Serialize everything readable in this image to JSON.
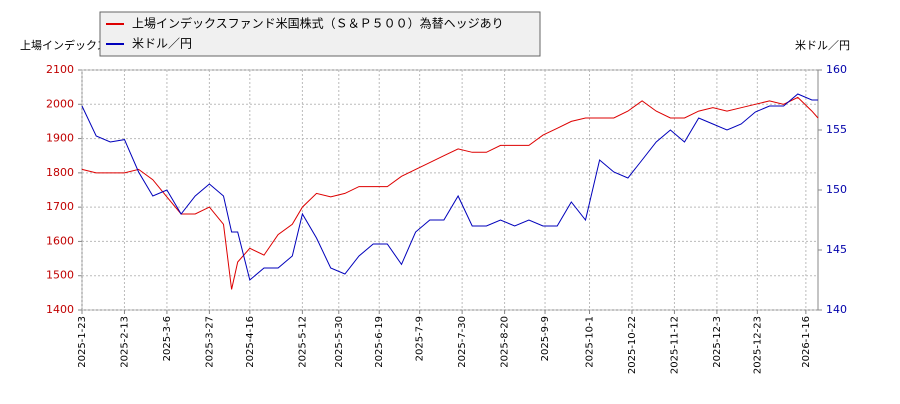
{
  "chart_data": {
    "type": "line",
    "ylabel": "上場インデックス",
    "y2label": "米ドル／円",
    "x": [
      "2025-1-23",
      "2025-1-30",
      "2025-2-6",
      "2025-2-13",
      "2025-2-20",
      "2025-2-27",
      "2025-3-6",
      "2025-3-13",
      "2025-3-20",
      "2025-3-27",
      "2025-4-3",
      "2025-4-7",
      "2025-4-10",
      "2025-4-16",
      "2025-4-23",
      "2025-4-30",
      "2025-5-7",
      "2025-5-12",
      "2025-5-19",
      "2025-5-26",
      "2025-6-2",
      "2025-6-9",
      "2025-6-16",
      "2025-6-23",
      "2025-6-30",
      "2025-7-7",
      "2025-7-14",
      "2025-7-21",
      "2025-7-28",
      "2025-8-4",
      "2025-8-11",
      "2025-8-18",
      "2025-8-25",
      "2025-9-1",
      "2025-9-8",
      "2025-9-15",
      "2025-9-22",
      "2025-9-29",
      "2025-10-6",
      "2025-10-13",
      "2025-10-20",
      "2025-10-27",
      "2025-11-3",
      "2025-11-10",
      "2025-11-17",
      "2025-11-24",
      "2025-12-1",
      "2025-12-8",
      "2025-12-15",
      "2025-12-22",
      "2025-12-29",
      "2026-1-5",
      "2026-1-12",
      "2026-1-19",
      "2026-1-22"
    ],
    "series": [
      {
        "name": "上場インデックスファンド米国株式（Ｓ＆Ｐ５００）為替ヘッジあり",
        "color": "#dd0000",
        "values": [
          1810,
          1800,
          1800,
          1800,
          1810,
          1780,
          1730,
          1680,
          1680,
          1700,
          1650,
          1460,
          1540,
          1580,
          1560,
          1620,
          1650,
          1700,
          1740,
          1730,
          1740,
          1760,
          1760,
          1760,
          1790,
          1810,
          1830,
          1850,
          1870,
          1860,
          1860,
          1880,
          1880,
          1880,
          1910,
          1930,
          1950,
          1960,
          1960,
          1960,
          1980,
          2010,
          1980,
          1960,
          1960,
          1980,
          1990,
          1980,
          1990,
          2000,
          2010,
          2000,
          2020,
          1980,
          1960
        ]
      },
      {
        "name": "米ドル／円",
        "color": "#0000bb",
        "axis": "y2",
        "values": [
          157,
          154.5,
          154,
          154.2,
          151.5,
          149.5,
          150,
          148,
          149.5,
          150.5,
          149.5,
          146.5,
          146.5,
          142.5,
          143.5,
          143.5,
          144.5,
          148,
          146,
          143.5,
          143,
          144.5,
          145.5,
          145.5,
          143.8,
          146.5,
          147.5,
          147.5,
          149.5,
          147,
          147,
          147.5,
          147,
          147.5,
          147,
          147,
          149,
          147.5,
          152.5,
          151.5,
          151,
          152.5,
          154,
          155,
          154,
          156,
          155.5,
          155,
          155.5,
          156.5,
          157,
          157,
          158,
          157.5,
          157.5
        ]
      }
    ],
    "xlim": [
      "2025-1-23",
      "2026-1-22"
    ],
    "xticks": [
      "2025-1-23",
      "2025-2-13",
      "2025-3-6",
      "2025-3-27",
      "2025-4-16",
      "2025-5-12",
      "2025-5-30",
      "2025-6-19",
      "2025-7-9",
      "2025-7-30",
      "2025-8-20",
      "2025-9-9",
      "2025-10-1",
      "2025-10-22",
      "2025-11-12",
      "2025-12-3",
      "2025-12-23",
      "2026-1-16"
    ],
    "ylim": [
      1400,
      2100
    ],
    "yticks": [
      1400,
      1500,
      1600,
      1700,
      1800,
      1900,
      2000,
      2100
    ],
    "y2lim": [
      140,
      160
    ],
    "y2ticks": [
      140,
      145,
      150,
      155,
      160
    ],
    "grid": true
  }
}
